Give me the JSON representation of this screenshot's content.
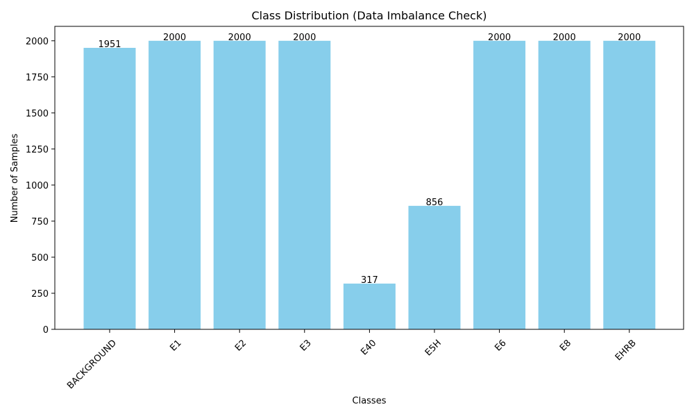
{
  "chart_data": {
    "type": "bar",
    "title": "Class Distribution (Data Imbalance Check)",
    "xlabel": "Classes",
    "ylabel": "Number of Samples",
    "categories": [
      "BACKGROUND",
      "E1",
      "E2",
      "E3",
      "E40",
      "E5H",
      "E6",
      "E8",
      "EHRB"
    ],
    "values": [
      1951,
      2000,
      2000,
      2000,
      317,
      856,
      2000,
      2000,
      2000
    ],
    "data_labels": [
      "1951",
      "2000",
      "2000",
      "2000",
      "317",
      "856",
      "2000",
      "2000",
      "2000"
    ],
    "ylim": [
      0,
      2100
    ],
    "yticks": [
      0,
      250,
      500,
      750,
      1000,
      1250,
      1500,
      1750,
      2000
    ],
    "ytick_labels": [
      "0",
      "250",
      "500",
      "750",
      "1000",
      "1250",
      "1500",
      "1750",
      "2000"
    ],
    "bar_color": "#87ceeb",
    "xtick_rotation_deg": 45,
    "grid": false,
    "legend": "none"
  }
}
